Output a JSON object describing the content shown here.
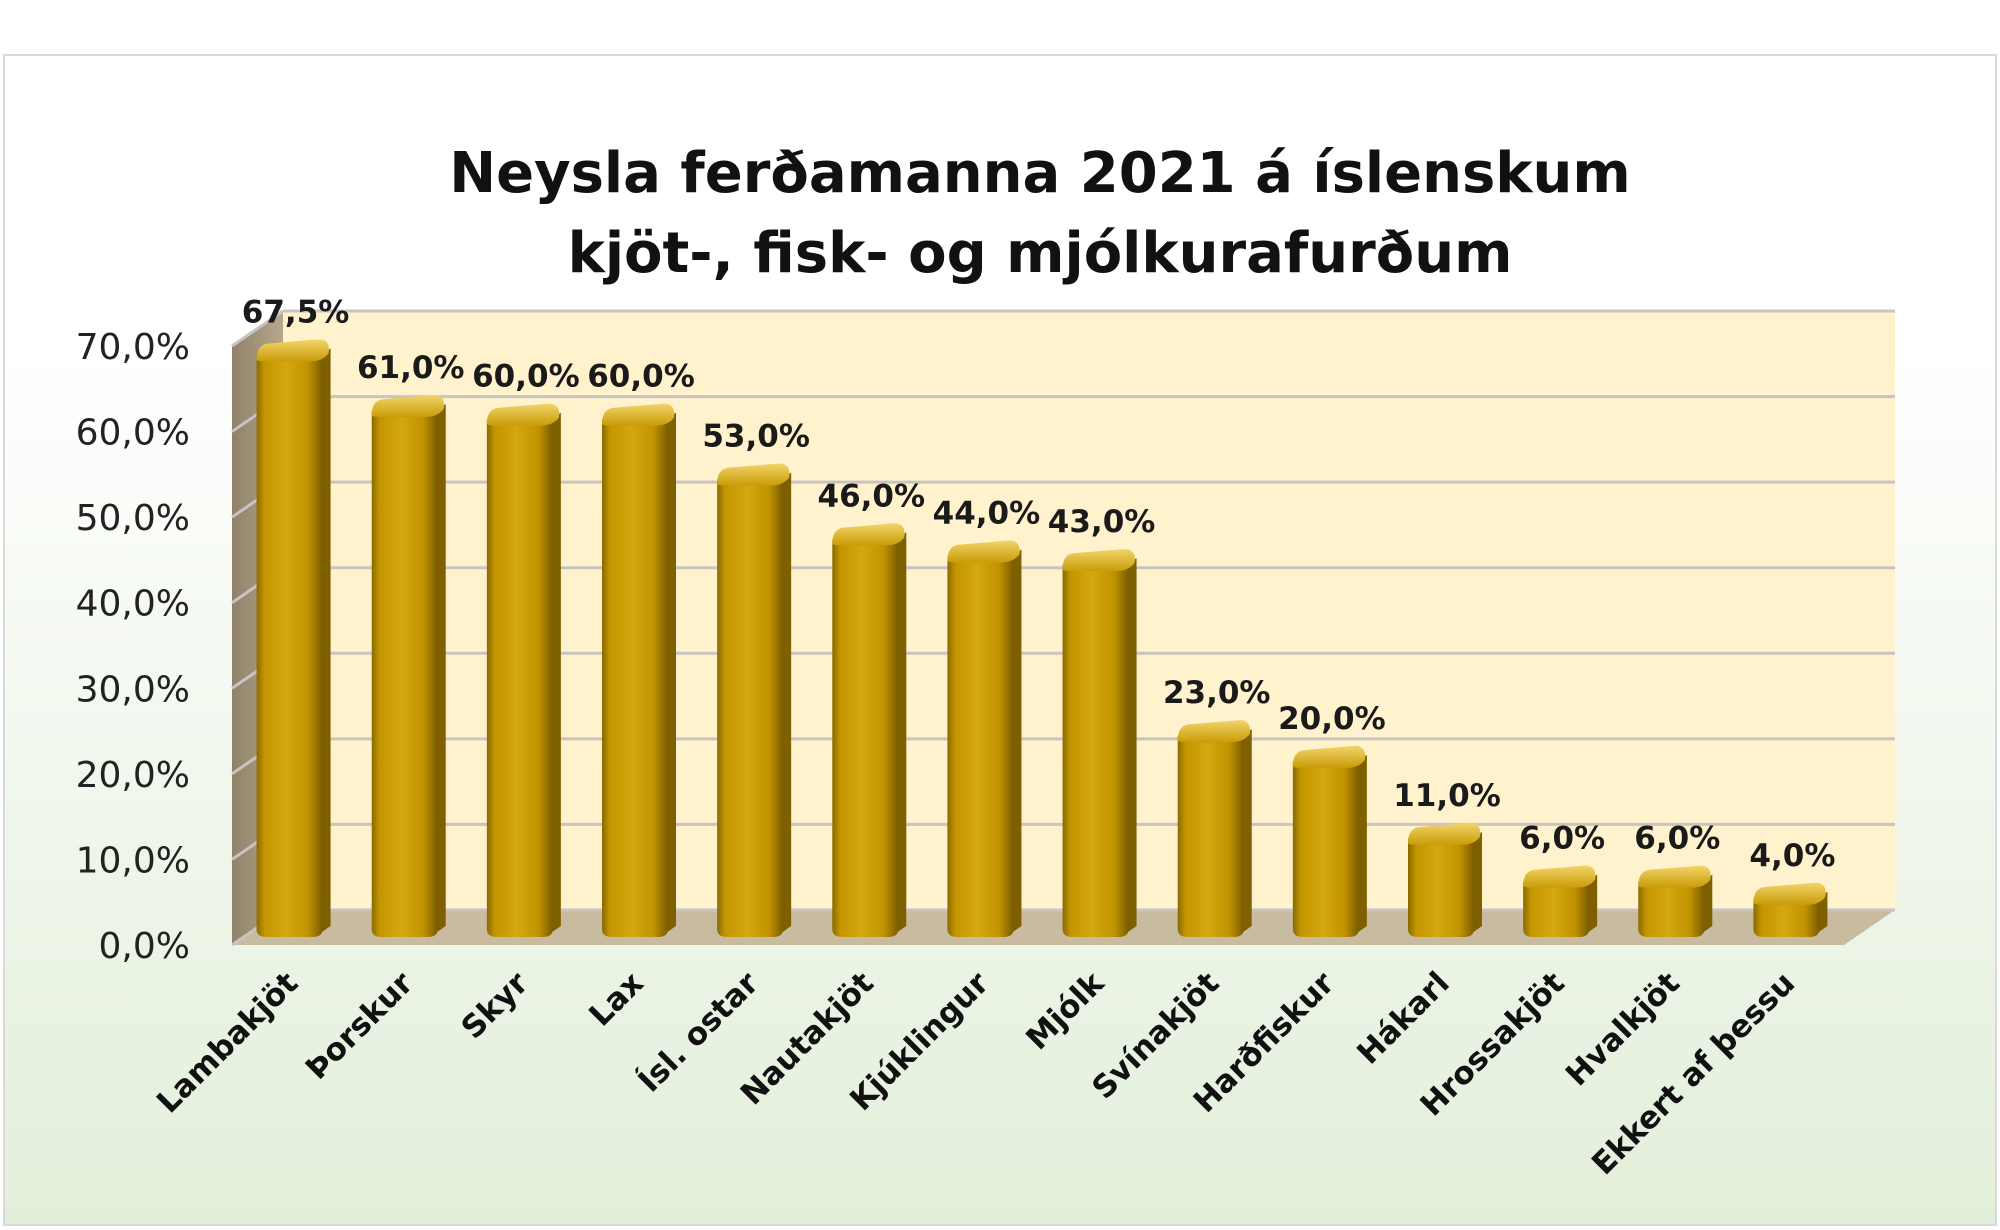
{
  "chart_data": {
    "type": "bar",
    "title": "Neysla ferðamanna 2021 á íslenskum kjöt-, fisk- og mjólkurafurðum",
    "title_lines": [
      "Neysla ferðamanna 2021 á íslenskum",
      "kjöt-, fisk- og mjólkurafurðum"
    ],
    "categories": [
      "Lambakjöt",
      "Þorskur",
      "Skyr",
      "Lax",
      "Ísl. ostar",
      "Nautakjöt",
      "Kjúklingur",
      "Mjólk",
      "Svínakjöt",
      "Harðfiskur",
      "Hákarl",
      "Hrossakjöt",
      "Hvalkjöt",
      "Ekkert af þessu"
    ],
    "values": [
      67.5,
      61.0,
      60.0,
      60.0,
      53.0,
      46.0,
      44.0,
      43.0,
      23.0,
      20.0,
      11.0,
      6.0,
      6.0,
      4.0
    ],
    "data_labels": [
      "67,5%",
      "61,0%",
      "60,0%",
      "60,0%",
      "53,0%",
      "46,0%",
      "44,0%",
      "43,0%",
      "23,0%",
      "20,0%",
      "11,0%",
      "6,0%",
      "6,0%",
      "4,0%"
    ],
    "y_ticks": [
      0,
      10,
      20,
      30,
      40,
      50,
      60,
      70
    ],
    "y_tick_labels": [
      "0,0%",
      "10,0%",
      "20,0%",
      "30,0%",
      "40,0%",
      "50,0%",
      "60,0%",
      "70,0%"
    ],
    "ylim": [
      0,
      70
    ],
    "xlabel": "",
    "ylabel": "",
    "grid": true,
    "style": "3d-cylinder",
    "colors": {
      "bar": "#C79A00",
      "bar_dark": "#7E6000",
      "bar_light": "#E7C24A",
      "back_wall": "#FFF2CC",
      "side_wall": "#A99A80",
      "floor": "#C8BBA0",
      "gridline": "#C9C4C0",
      "background_top": "#FFFFFF",
      "background_bottom": "#E2EFDA"
    }
  }
}
